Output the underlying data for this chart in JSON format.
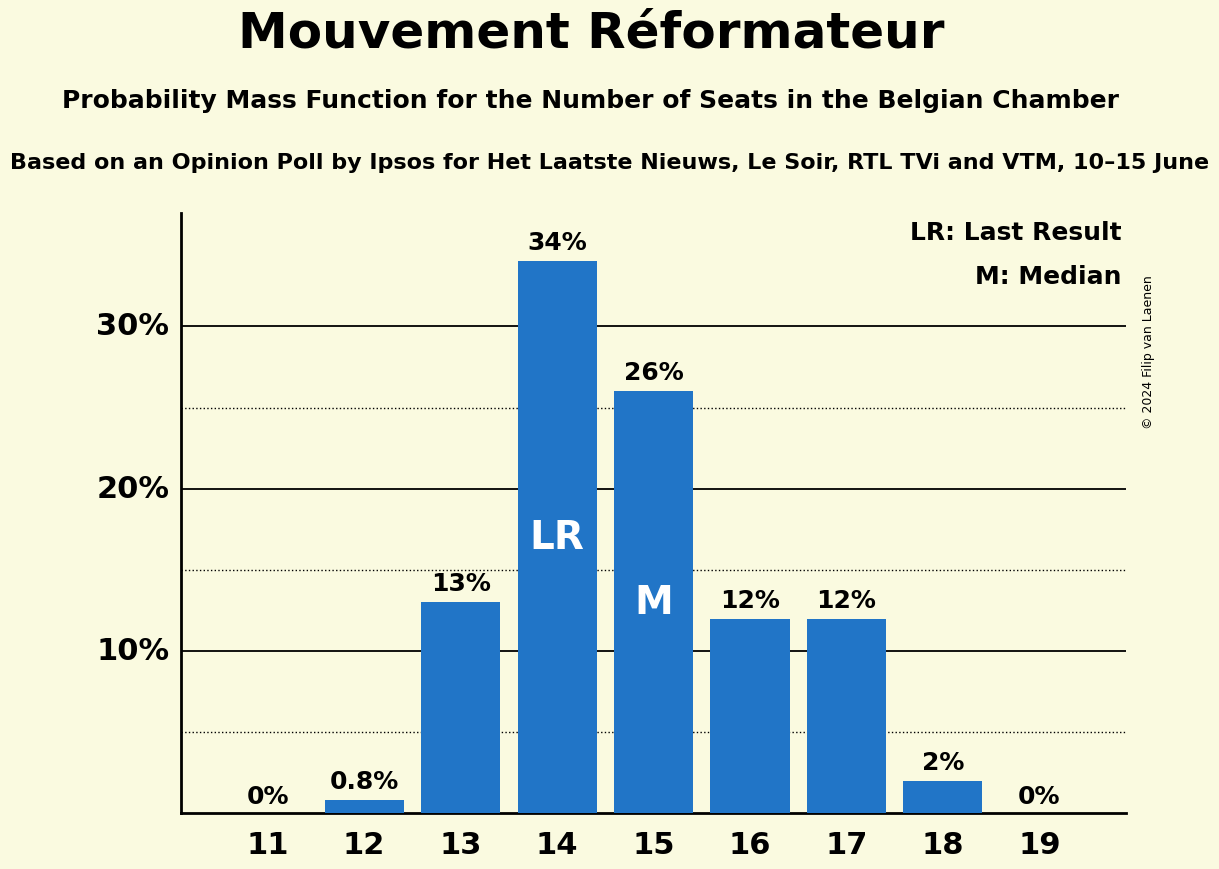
{
  "title": "Mouvement Réformateur",
  "subtitle": "Probability Mass Function for the Number of Seats in the Belgian Chamber",
  "sub2": "Based on an Opinion Poll by Ipsos for Het Laatste Nieuws, Le Soir, RTL TVi and VTM, 10–15 June",
  "copyright": "© 2024 Filip van Laenen",
  "categories": [
    11,
    12,
    13,
    14,
    15,
    16,
    17,
    18,
    19
  ],
  "values": [
    0,
    0.8,
    13,
    34,
    26,
    12,
    12,
    2,
    0
  ],
  "bar_color": "#2175C7",
  "background_color": "#FAFAE0",
  "label_texts": [
    "0%",
    "0.8%",
    "13%",
    "34%",
    "26%",
    "12%",
    "12%",
    "2%",
    "0%"
  ],
  "lr_bar": 14,
  "median_bar": 15,
  "legend_lr": "LR: Last Result",
  "legend_m": "M: Median",
  "solid_yticks": [
    10,
    20,
    30
  ],
  "dotted_yticks": [
    5,
    15,
    25
  ],
  "ylim": [
    0,
    37
  ],
  "title_fontsize": 36,
  "subtitle_fontsize": 18,
  "sub2_fontsize": 16,
  "bar_label_fontsize": 18,
  "axis_tick_fontsize": 22,
  "legend_fontsize": 18,
  "lr_m_fontsize": 28
}
